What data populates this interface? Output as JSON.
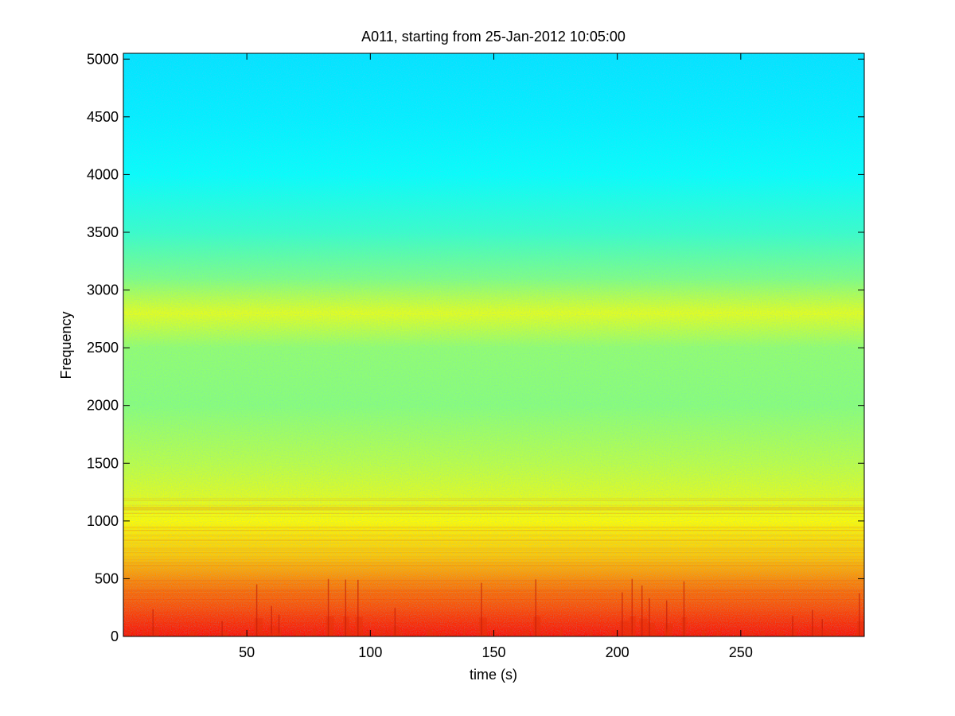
{
  "chart_data": {
    "type": "heatmap",
    "title": "A011, starting from 25-Jan-2012 10:05:00",
    "xlabel": "time (s)",
    "ylabel": "Frequency",
    "xlim": [
      0,
      300
    ],
    "ylim": [
      0,
      5050
    ],
    "xticks": [
      50,
      100,
      150,
      200,
      250
    ],
    "yticks": [
      0,
      500,
      1000,
      1500,
      2000,
      2500,
      3000,
      3500,
      4000,
      4500,
      5000
    ],
    "grid": false,
    "colormap": "jet",
    "colors": {
      "low": "#33f0d5",
      "mid": "#8fef70",
      "high": "#f7f500",
      "peak": "#e8320a"
    },
    "intensity_profile": [
      {
        "frequency": 0,
        "level": 0.86
      },
      {
        "frequency": 250,
        "level": 0.8
      },
      {
        "frequency": 500,
        "level": 0.74
      },
      {
        "frequency": 700,
        "level": 0.68
      },
      {
        "frequency": 1000,
        "level": 0.63
      },
      {
        "frequency": 1500,
        "level": 0.56
      },
      {
        "frequency": 2000,
        "level": 0.51
      },
      {
        "frequency": 2500,
        "level": 0.52
      },
      {
        "frequency": 2800,
        "level": 0.6
      },
      {
        "frequency": 3100,
        "level": 0.5
      },
      {
        "frequency": 3500,
        "level": 0.43
      },
      {
        "frequency": 4000,
        "level": 0.38
      },
      {
        "frequency": 4500,
        "level": 0.36
      },
      {
        "frequency": 5000,
        "level": 0.35
      }
    ],
    "transient_events_s": [
      12,
      40,
      54,
      60,
      63,
      83,
      90,
      95,
      110,
      145,
      167,
      202,
      206,
      210,
      213,
      220,
      227,
      271,
      279,
      283,
      298
    ]
  }
}
